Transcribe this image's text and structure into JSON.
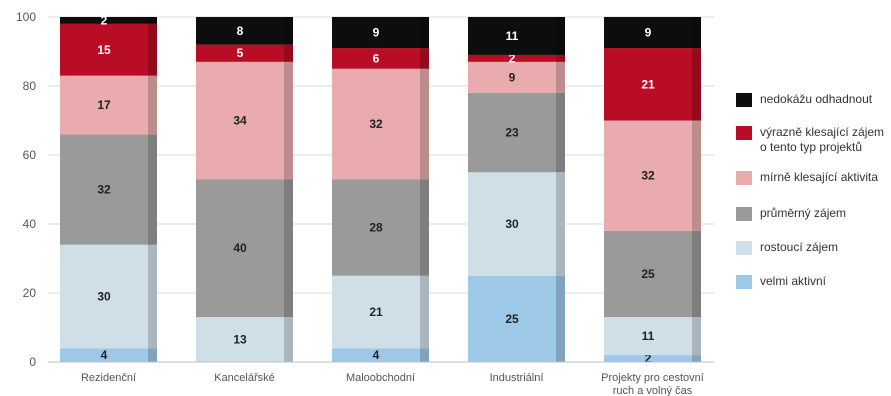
{
  "chart_data": {
    "type": "bar",
    "stacked": true,
    "categories": [
      "Rezidenční",
      "Kancelářské",
      "Maloobchodní",
      "Industriální",
      "Projekty pro cestovní\nruch a volný čas"
    ],
    "series": [
      {
        "name": "velmi aktivní",
        "color": "#9ec8e8",
        "values": [
          4,
          0,
          4,
          25,
          2
        ],
        "labels": [
          "4",
          "",
          "4",
          "25",
          "2"
        ]
      },
      {
        "name": "rostoucí zájem",
        "color": "#cfdfe8",
        "values": [
          30,
          13,
          21,
          30,
          11
        ],
        "labels": [
          "30",
          "13",
          "21",
          "30",
          "11"
        ]
      },
      {
        "name": "průměrný zájem",
        "color": "#9a9a9a",
        "values": [
          32,
          40,
          28,
          23,
          25
        ],
        "labels": [
          "32",
          "40",
          "28",
          "23",
          "25"
        ]
      },
      {
        "name": "mírně klesající aktivita",
        "color": "#e9abae",
        "values": [
          17,
          34,
          32,
          9,
          32
        ],
        "labels": [
          "17",
          "34",
          "32",
          "9",
          "32"
        ]
      },
      {
        "name": "výrazně klesající zájem\no tento typ projektů",
        "color": "#b80d25",
        "values": [
          15,
          5,
          6,
          2,
          21
        ],
        "labels": [
          "15",
          "5",
          "6",
          "2",
          "21"
        ]
      },
      {
        "name": "nedokážu odhadnout",
        "color": "#0d0d0d",
        "values": [
          2,
          8,
          9,
          11,
          9
        ],
        "labels": [
          "2",
          "8",
          "9",
          "11",
          "9"
        ]
      }
    ],
    "legend_order": [
      "nedokážu odhadnout",
      "výrazně klesající zájem\no tento typ projektů",
      "mírně klesající aktivita",
      "průměrný zájem",
      "rostoucí zájem",
      "velmi aktivní"
    ],
    "yticks": [
      "0",
      "20",
      "40",
      "60",
      "80",
      "100"
    ],
    "ylim": [
      0,
      100
    ],
    "grid": true,
    "legend_position": "right",
    "xlabel": "",
    "ylabel": "",
    "title": ""
  }
}
